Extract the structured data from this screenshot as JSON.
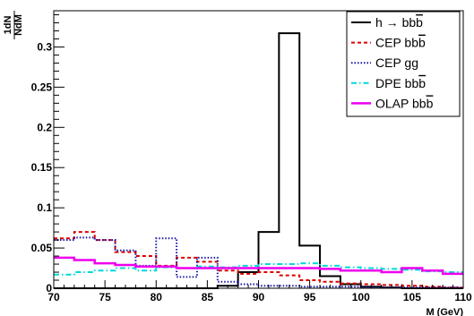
{
  "chart_data": {
    "type": "line",
    "xlabel": "M (GeV)",
    "ylabel_top": "1dN",
    "ylabel_bottom": "NdM",
    "xlim": [
      70,
      110
    ],
    "ylim": [
      0,
      0.345
    ],
    "x_ticks": [
      70,
      75,
      80,
      85,
      90,
      95,
      100,
      105,
      110
    ],
    "y_ticks": [
      0,
      0.05,
      0.1,
      0.15,
      0.2,
      0.25,
      0.3
    ],
    "bin_edges": [
      70,
      72,
      74,
      76,
      78,
      80,
      82,
      84,
      86,
      88,
      90,
      92,
      94,
      96,
      98,
      100,
      102,
      104,
      106,
      108,
      110
    ],
    "legend_position": "top-right",
    "series": [
      {
        "name": "h → bb̅",
        "label_main": "h → bb",
        "label_bar": "b",
        "color": "#000000",
        "dash": "",
        "width": 2,
        "values": [
          0,
          0,
          0,
          0,
          0,
          0,
          0,
          0,
          0.003,
          0.02,
          0.07,
          0.317,
          0.053,
          0.015,
          0.005,
          0.002,
          0.001,
          0,
          0,
          0
        ]
      },
      {
        "name": "CEP bb̅",
        "label_main": "CEP bb",
        "label_bar": "b",
        "color": "#dd0000",
        "dash": "4,3",
        "width": 2,
        "values": [
          0.062,
          0.07,
          0.06,
          0.045,
          0.04,
          0.028,
          0.038,
          0.033,
          0.022,
          0.018,
          0.02,
          0.016,
          0.01,
          0.008,
          0.006,
          0.005,
          0.004,
          0.003,
          0.002,
          0.001
        ]
      },
      {
        "name": "CEP gg",
        "label_main": "CEP gg",
        "label_bar": "",
        "color": "#1818a8",
        "dash": "1.5,2",
        "width": 2,
        "values": [
          0.06,
          0.063,
          0.06,
          0.047,
          0.028,
          0.062,
          0.014,
          0.038,
          0.008,
          0.005,
          0.003,
          0.003,
          0.002,
          0.002,
          0.002,
          0.001,
          0.001,
          0.001,
          0.001,
          0.001
        ]
      },
      {
        "name": "DPE bb̅",
        "label_main": "DPE bb",
        "label_bar": "b",
        "color": "#00d8d8",
        "dash": "6,3,1.5,3",
        "width": 2,
        "values": [
          0.017,
          0.02,
          0.022,
          0.025,
          0.022,
          0.026,
          0.025,
          0.027,
          0.026,
          0.028,
          0.03,
          0.03,
          0.031,
          0.028,
          0.026,
          0.025,
          0.024,
          0.023,
          0.021,
          0.02
        ]
      },
      {
        "name": "OLAP bb̅",
        "label_main": "OLAP bb",
        "label_bar": "b",
        "color": "#ee00ee",
        "dash": "",
        "width": 2.5,
        "values": [
          0.038,
          0.035,
          0.031,
          0.029,
          0.027,
          0.027,
          0.025,
          0.025,
          0.025,
          0.025,
          0.025,
          0.025,
          0.025,
          0.024,
          0.022,
          0.022,
          0.02,
          0.025,
          0.022,
          0.018
        ]
      }
    ]
  }
}
